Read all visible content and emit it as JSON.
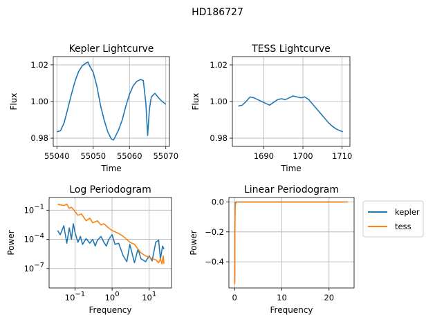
{
  "suptitle": "HD186727",
  "colors": {
    "kepler": "#1f77b4",
    "tess": "#ff7f0e",
    "grid": "#b0b0b0"
  },
  "chart_data": [
    {
      "id": "kepler",
      "type": "line",
      "title": "Kepler Lightcurve",
      "xlabel": "Time",
      "ylabel": "Flux",
      "grid": true,
      "xlim": [
        55039,
        55071
      ],
      "ylim": [
        0.9755,
        1.0245
      ],
      "xticks": [
        55040,
        55050,
        55060,
        55070
      ],
      "xticklabels": [
        "55040",
        "55050",
        "55060",
        "55070"
      ],
      "yticks": [
        0.98,
        1.0,
        1.02
      ],
      "yticklabels": [
        "0.98",
        "1.00",
        "1.02"
      ],
      "series": [
        {
          "color": "#1f77b4",
          "x": [
            55040,
            55041,
            55042,
            55043,
            55044,
            55045,
            55046,
            55047,
            55048,
            55048.6,
            55049,
            55050,
            55051,
            55052,
            55053,
            55054,
            55055,
            55055.6,
            55056,
            55057,
            55058,
            55059,
            55060,
            55061,
            55062,
            55063,
            55063.8,
            55064.5,
            55065,
            55065.5,
            55066,
            55067,
            55068,
            55069,
            55070
          ],
          "y": [
            0.9835,
            0.984,
            0.9885,
            0.996,
            1.004,
            1.011,
            1.0165,
            1.0195,
            1.021,
            1.0215,
            1.0195,
            1.016,
            1.0085,
            0.998,
            0.99,
            0.9835,
            0.9795,
            0.979,
            0.9805,
            0.9845,
            0.99,
            0.9975,
            1.004,
            1.0085,
            1.011,
            1.012,
            1.0115,
            0.999,
            0.9815,
            0.996,
            1.0025,
            1.0045,
            1.002,
            1.0,
            0.9985
          ]
        }
      ]
    },
    {
      "id": "tess",
      "type": "line",
      "title": "TESS Lightcurve",
      "xlabel": "Time",
      "ylabel": "Flux",
      "grid": true,
      "xlim": [
        1682,
        1712
      ],
      "ylim": [
        0.9755,
        1.0245
      ],
      "xticks": [
        1690,
        1700,
        1710
      ],
      "xticklabels": [
        "1690",
        "1700",
        "1710"
      ],
      "yticks": [
        0.98,
        1.0,
        1.02
      ],
      "yticklabels": [
        "0.98",
        "1.00",
        "1.02"
      ],
      "series": [
        {
          "color": "#1f77b4",
          "x": [
            1683.5,
            1684.5,
            1685.5,
            1686.5,
            1687.5,
            1688.5,
            1689.5,
            1690.5,
            1691.5,
            1692.5,
            1693.5,
            1694.5,
            1695.5,
            1696.5,
            1697.5,
            1698.5,
            1699.5,
            1700.5,
            1701.5,
            1702.5,
            1703.5,
            1704.5,
            1705.5,
            1706.5,
            1707.5,
            1708.5,
            1709.5,
            1710.2
          ],
          "y": [
            0.9975,
            0.998,
            1.0,
            1.0025,
            1.002,
            1.001,
            1.0,
            0.999,
            0.998,
            0.9995,
            1.001,
            1.0015,
            1.001,
            1.002,
            1.003,
            1.0025,
            1.002,
            1.0025,
            1.001,
            0.9985,
            0.996,
            0.9935,
            0.991,
            0.9885,
            0.9865,
            0.985,
            0.984,
            0.9835
          ]
        }
      ]
    },
    {
      "id": "logpg",
      "type": "line",
      "title": "Log Periodogram",
      "xlabel": "Frequency",
      "ylabel": "Power",
      "grid": true,
      "xscale": "log",
      "yscale": "log",
      "xlim": [
        0.02,
        40
      ],
      "ylim": [
        1e-09,
        2
      ],
      "xticks": [
        0.1,
        1,
        10
      ],
      "xticklabels": [
        "10",
        "10",
        "10"
      ],
      "xtickexps": [
        "−1",
        "0",
        "1"
      ],
      "yticks": [
        0.1,
        0.0001,
        1e-07
      ],
      "yticklabels": [
        "10",
        "10",
        "10"
      ],
      "ytickexps": [
        "−1",
        "−4",
        "−7"
      ],
      "series": [
        {
          "name": "kepler",
          "color": "#1f77b4",
          "x": [
            0.034,
            0.04,
            0.05,
            0.06,
            0.07,
            0.08,
            0.09,
            0.1,
            0.12,
            0.14,
            0.16,
            0.2,
            0.25,
            0.3,
            0.35,
            0.4,
            0.5,
            0.6,
            0.7,
            0.8,
            1.0,
            1.2,
            1.5,
            2.0,
            2.5,
            3.0,
            4.0,
            5.0,
            6.0,
            8.0,
            10,
            12,
            15,
            18,
            20,
            23,
            25
          ],
          "y": [
            0.0008,
            0.0003,
            0.0025,
            4e-05,
            0.0015,
            0.0001,
            0.004,
            0.0005,
            5e-05,
            0.0002,
            3e-05,
            0.00012,
            4e-05,
            0.0001,
            2e-05,
            8e-05,
            0.0002,
            5e-05,
            2e-05,
            9e-05,
            0.0003,
            3e-05,
            4e-05,
            2e-06,
            5e-07,
            3e-05,
            4e-07,
            1e-05,
            1e-06,
            5e-07,
            2e-06,
            6e-07,
            5e-05,
            8e-05,
            1e-06,
            2e-05,
            1e-05
          ]
        },
        {
          "name": "tess",
          "color": "#ff7f0e",
          "x": [
            0.034,
            0.04,
            0.05,
            0.06,
            0.07,
            0.08,
            0.09,
            0.1,
            0.12,
            0.15,
            0.2,
            0.25,
            0.3,
            0.4,
            0.5,
            0.6,
            0.8,
            1.0,
            1.2,
            1.5,
            2.0,
            2.5,
            3.0,
            4.0,
            5.0,
            6.0,
            8.0,
            10,
            12,
            15,
            18,
            20,
            22,
            24,
            25
          ],
          "y": [
            0.4,
            0.35,
            0.3,
            0.4,
            0.15,
            0.2,
            0.12,
            0.07,
            0.03,
            0.04,
            0.008,
            0.015,
            0.005,
            0.008,
            0.003,
            0.004,
            0.0015,
            0.0008,
            0.0006,
            0.0004,
            0.0002,
            0.0001,
            5e-05,
            3e-05,
            1e-05,
            4e-06,
            2e-06,
            1.5e-06,
            1e-06,
            8e-07,
            4e-07,
            1e-06,
            3e-07,
            2e-06,
            3e-07
          ]
        }
      ]
    },
    {
      "id": "linpg",
      "type": "line",
      "title": "Linear Periodogram",
      "xlabel": "Frequency",
      "ylabel": "Power",
      "grid": true,
      "xlim": [
        -1.2,
        25.3
      ],
      "ylim": [
        -0.575,
        0.03
      ],
      "xticks": [
        0,
        10,
        20
      ],
      "xticklabels": [
        "0",
        "10",
        "20"
      ],
      "yticks": [
        0.0,
        -0.2,
        -0.4
      ],
      "yticklabels": [
        "0.0",
        "−0.2",
        "−0.4"
      ],
      "series": [
        {
          "name": "kepler",
          "color": "#1f77b4",
          "x": [
            0.034,
            0.05,
            0.1,
            0.15,
            0.2,
            0.4,
            1,
            5,
            10,
            15,
            20,
            24
          ],
          "y": [
            -0.53,
            -0.2,
            -0.05,
            -0.01,
            0.0,
            0.0,
            0.0,
            0.0,
            0.0,
            0.0,
            0.0,
            0.0
          ]
        },
        {
          "name": "tess",
          "color": "#ff7f0e",
          "x": [
            0.034,
            0.05,
            0.07,
            0.1,
            0.15,
            0.2,
            0.3,
            0.5,
            1,
            5,
            10,
            15,
            20,
            24
          ],
          "y": [
            -0.55,
            -0.45,
            -0.2,
            -0.05,
            -0.03,
            -0.01,
            -0.005,
            0.0,
            0.0,
            0.0,
            0.0,
            0.0,
            0.0,
            0.0
          ]
        }
      ]
    }
  ],
  "legend": {
    "placement": "outside right of Linear Periodogram",
    "entries": [
      {
        "label": "kepler",
        "color": "#1f77b4"
      },
      {
        "label": "tess",
        "color": "#ff7f0e"
      }
    ]
  }
}
